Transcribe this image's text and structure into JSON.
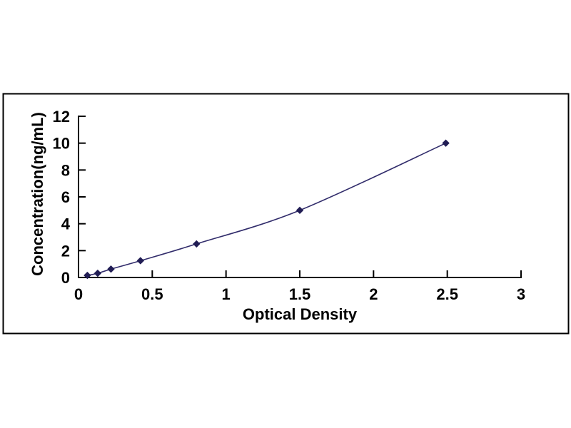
{
  "figure": {
    "background_color": "#ffffff",
    "frame_border_color": "#000000",
    "axis_color": "#000000",
    "curve_color": "#312c6b",
    "marker_color": "#211d54"
  },
  "chart_data": {
    "type": "line",
    "title": "",
    "xlabel": "Optical Density",
    "ylabel": "Concentration(ng/mL)",
    "xlim": [
      0,
      3
    ],
    "ylim": [
      0,
      12
    ],
    "x_ticks": [
      0,
      0.5,
      1,
      1.5,
      2,
      2.5,
      3
    ],
    "y_ticks": [
      0,
      2,
      4,
      6,
      8,
      10,
      12
    ],
    "grid": false,
    "legend": false,
    "marker": "diamond",
    "series": [
      {
        "x": [
          0.06,
          0.13,
          0.22,
          0.42,
          0.8,
          1.5,
          2.49
        ],
        "y": [
          0.156,
          0.312,
          0.625,
          1.25,
          2.5,
          5,
          10
        ]
      }
    ]
  }
}
